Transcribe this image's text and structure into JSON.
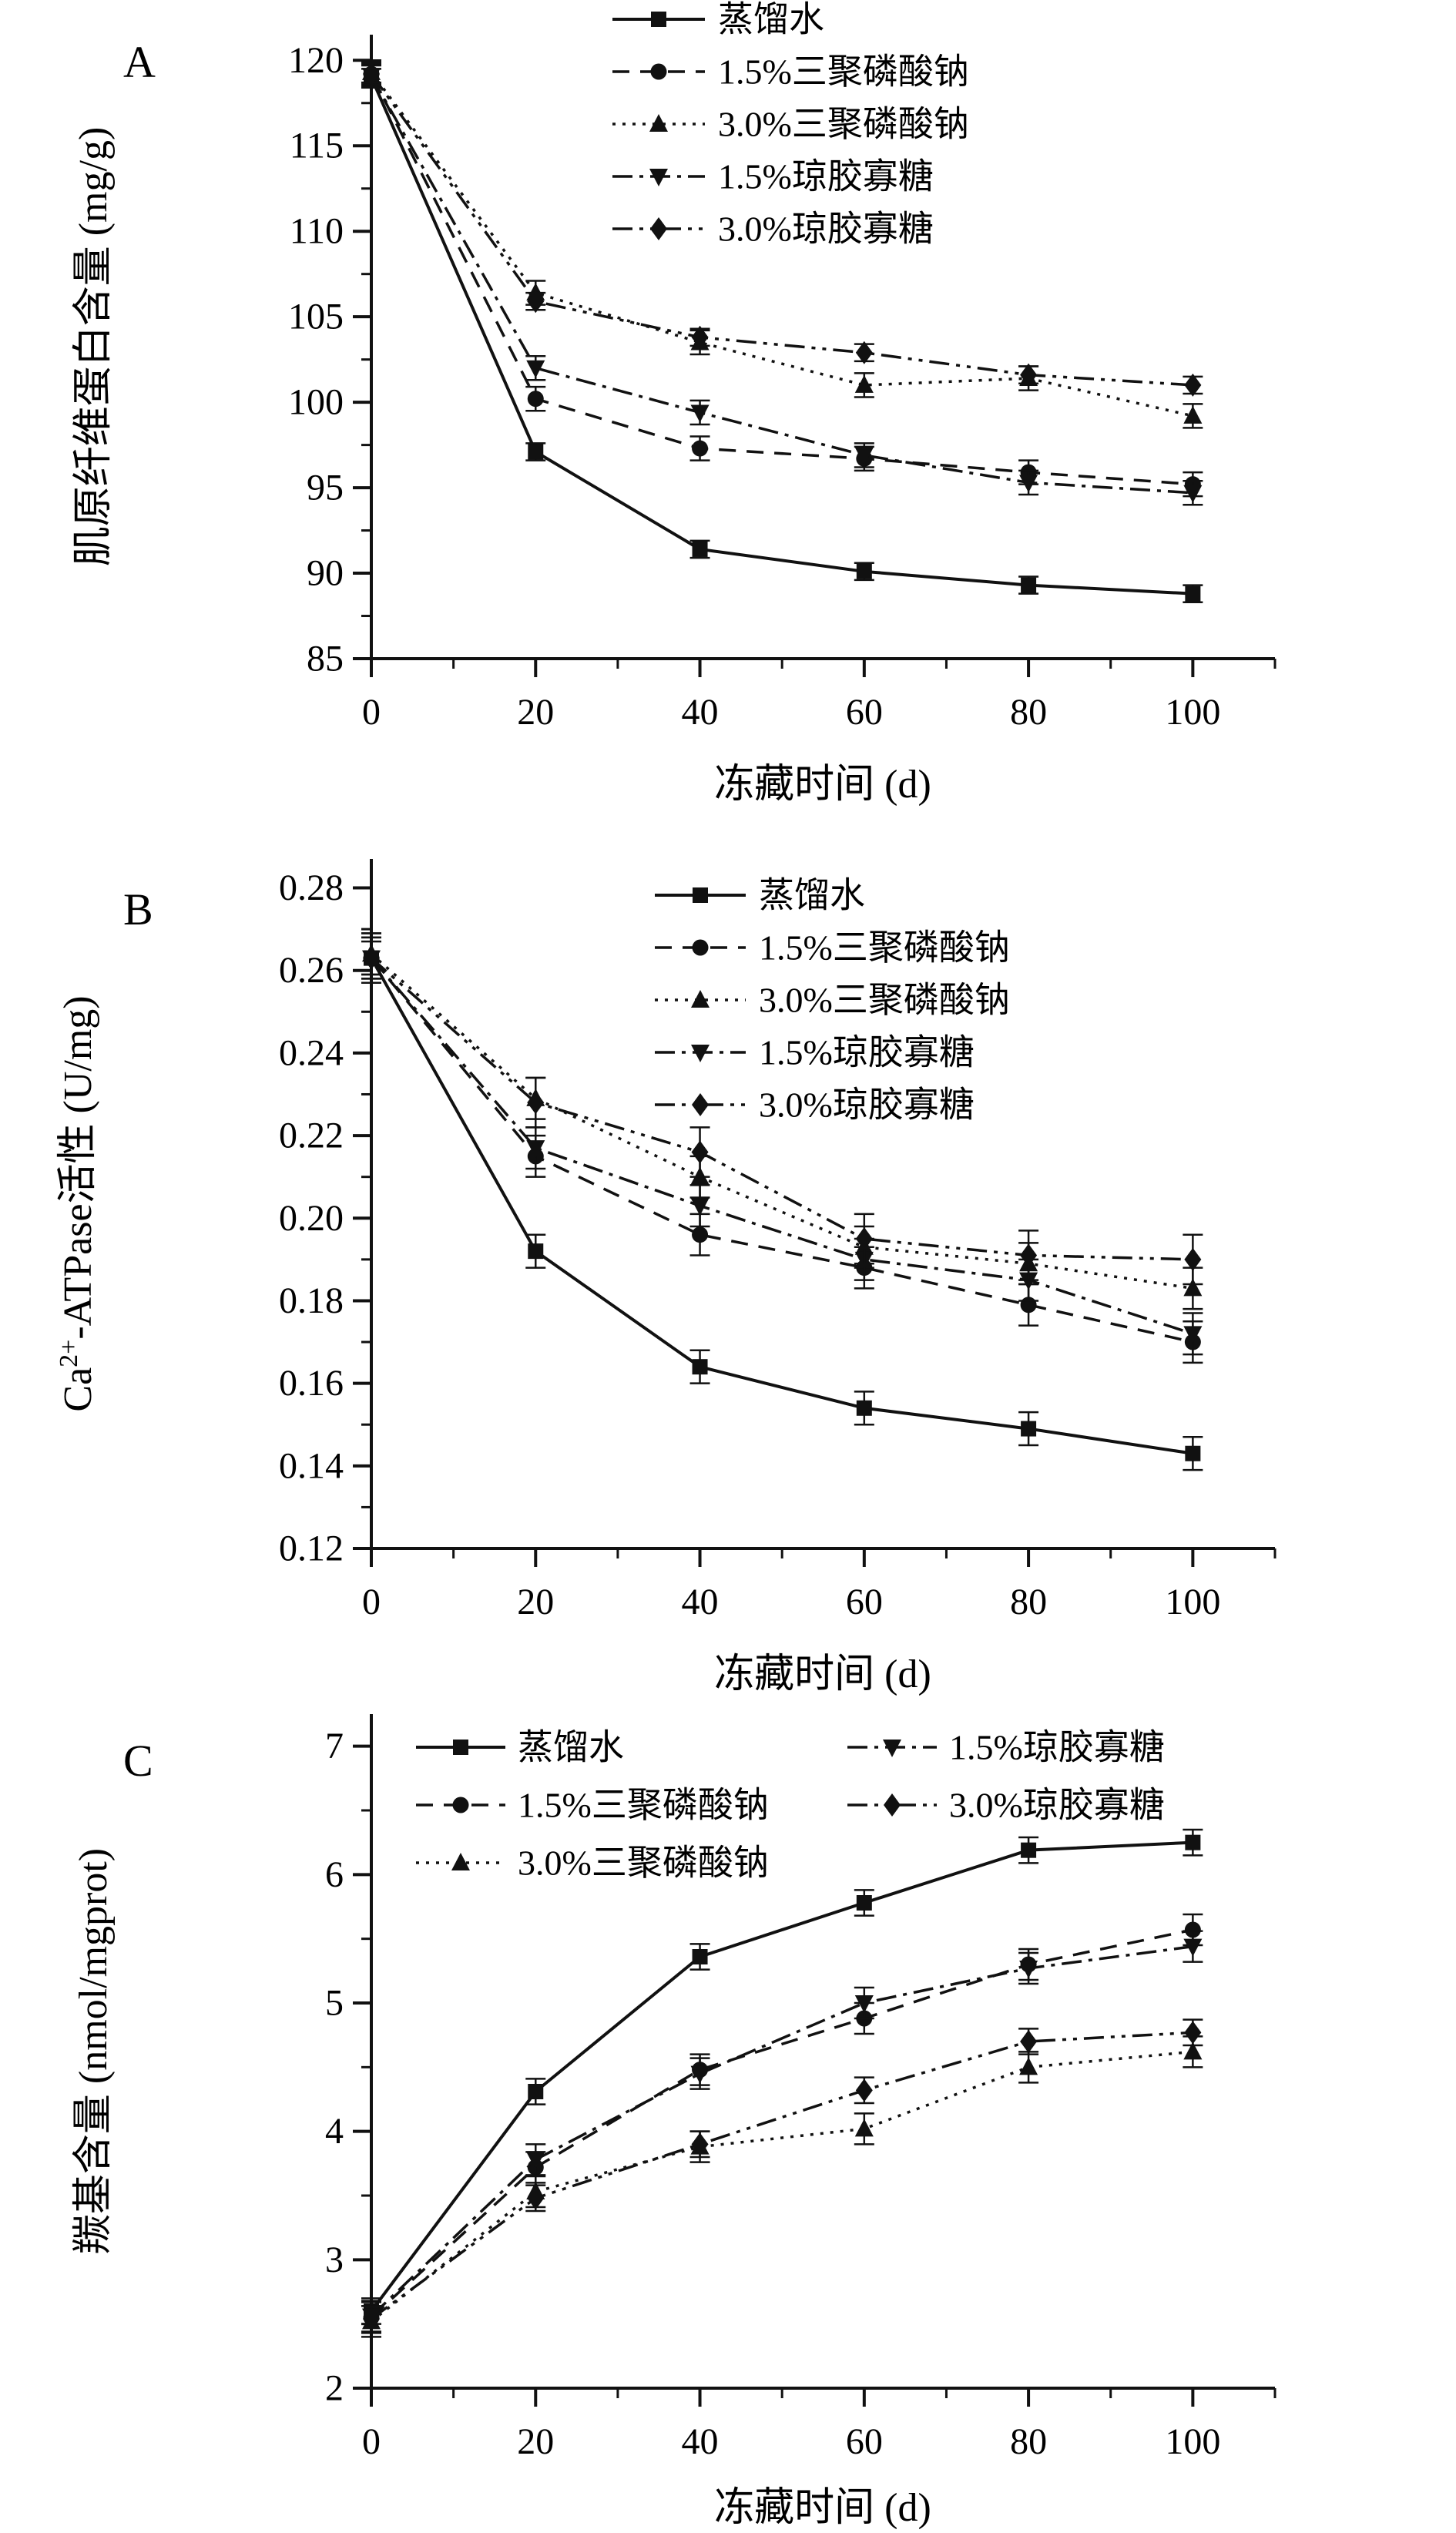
{
  "figure": {
    "description_labels": {
      "panel_a": "A",
      "panel_b": "B",
      "panel_c": "C"
    }
  },
  "chart_data": [
    {
      "type": "line",
      "panel_label": "A",
      "xlabel": "冻藏时间 (d)",
      "ylabel": "肌原纤维蛋白含量 (mg/g)",
      "x": [
        0,
        20,
        40,
        60,
        80,
        100
      ],
      "xlim": [
        0,
        110
      ],
      "ylim": [
        85,
        121.5
      ],
      "xticks": [
        {
          "v": 0,
          "label": "0"
        },
        {
          "v": 20,
          "label": "20"
        },
        {
          "v": 40,
          "label": "40"
        },
        {
          "v": 60,
          "label": "60"
        },
        {
          "v": 80,
          "label": "80"
        },
        {
          "v": 100,
          "label": "100"
        }
      ],
      "xminor": [
        10,
        30,
        50,
        70,
        90,
        110
      ],
      "yticks": [
        {
          "v": 85,
          "label": "85"
        },
        {
          "v": 90,
          "label": "90"
        },
        {
          "v": 95,
          "label": "95"
        },
        {
          "v": 100,
          "label": "100"
        },
        {
          "v": 105,
          "label": "105"
        },
        {
          "v": 110,
          "label": "110"
        },
        {
          "v": 115,
          "label": "115"
        },
        {
          "v": 120,
          "label": "120"
        }
      ],
      "yminor": [
        87.5,
        92.5,
        97.5,
        102.5,
        107.5,
        112.5,
        117.5
      ],
      "grid": false,
      "legend_position": "top-right-inside",
      "series": [
        {
          "key": "distilled-water",
          "name": "蒸馏水",
          "marker": "square",
          "dash": "",
          "values": [
            119.0,
            97.1,
            91.4,
            90.1,
            89.3,
            88.8
          ],
          "err": 0.5
        },
        {
          "key": "sodium-tripolyphosphate-1-5",
          "name": "1.5%三聚磷酸钠",
          "marker": "circle",
          "dash": "22 14",
          "values": [
            119.2,
            100.2,
            97.3,
            96.7,
            95.9,
            95.2
          ],
          "err": 0.7
        },
        {
          "key": "sodium-tripolyphosphate-3-0",
          "name": "3.0%三聚磷酸钠",
          "marker": "triangle-up",
          "dash": "4 9",
          "values": [
            119.3,
            106.4,
            103.5,
            101.0,
            101.4,
            99.2
          ],
          "err": 0.7
        },
        {
          "key": "agar-oligosaccharide-1-5",
          "name": "1.5%琼胶寡糖",
          "marker": "triangle-down",
          "dash": "26 9 5 9",
          "values": [
            119.1,
            102.0,
            99.4,
            96.9,
            95.3,
            94.7
          ],
          "err": 0.7
        },
        {
          "key": "agar-oligosaccharide-3-0",
          "name": "3.0%琼胶寡糖",
          "marker": "diamond",
          "dash": "26 9 5 9 5 9",
          "values": [
            119.2,
            105.9,
            103.8,
            102.9,
            101.6,
            101.0
          ],
          "err": 0.5
        }
      ]
    },
    {
      "type": "line",
      "panel_label": "B",
      "xlabel": "冻藏时间 (d)",
      "ylabel": "Ca2+-ATPase活性 (U/mg)",
      "ylabel_parts": {
        "pre": "Ca",
        "sup": "2+",
        "post": "-ATPase活性 (U/mg)"
      },
      "x": [
        0,
        20,
        40,
        60,
        80,
        100
      ],
      "xlim": [
        0,
        110
      ],
      "ylim": [
        0.12,
        0.287
      ],
      "xticks": [
        {
          "v": 0,
          "label": "0"
        },
        {
          "v": 20,
          "label": "20"
        },
        {
          "v": 40,
          "label": "40"
        },
        {
          "v": 60,
          "label": "60"
        },
        {
          "v": 80,
          "label": "80"
        },
        {
          "v": 100,
          "label": "100"
        }
      ],
      "xminor": [
        10,
        30,
        50,
        70,
        90,
        110
      ],
      "yticks": [
        {
          "v": 0.12,
          "label": "0.12"
        },
        {
          "v": 0.14,
          "label": "0.14"
        },
        {
          "v": 0.16,
          "label": "0.16"
        },
        {
          "v": 0.18,
          "label": "0.18"
        },
        {
          "v": 0.2,
          "label": "0.20"
        },
        {
          "v": 0.22,
          "label": "0.22"
        },
        {
          "v": 0.24,
          "label": "0.24"
        },
        {
          "v": 0.26,
          "label": "0.26"
        },
        {
          "v": 0.28,
          "label": "0.28"
        }
      ],
      "yminor": [
        0.13,
        0.15,
        0.17,
        0.19,
        0.21,
        0.23,
        0.25,
        0.27
      ],
      "grid": false,
      "legend_position": "top-right-inside",
      "series": [
        {
          "key": "distilled-water",
          "name": "蒸馏水",
          "marker": "square",
          "dash": "",
          "values": [
            0.263,
            0.192,
            0.164,
            0.154,
            0.149,
            0.143
          ],
          "err": 0.004
        },
        {
          "key": "sodium-tripolyphosphate-1-5",
          "name": "1.5%三聚磷酸钠",
          "marker": "circle",
          "dash": "22 14",
          "values": [
            0.263,
            0.215,
            0.196,
            0.188,
            0.179,
            0.17
          ],
          "err": 0.005
        },
        {
          "key": "sodium-tripolyphosphate-3-0",
          "name": "3.0%三聚磷酸钠",
          "marker": "triangle-up",
          "dash": "4 9",
          "values": [
            0.264,
            0.229,
            0.21,
            0.193,
            0.189,
            0.183
          ],
          "err": 0.005
        },
        {
          "key": "agar-oligosaccharide-1-5",
          "name": "1.5%琼胶寡糖",
          "marker": "triangle-down",
          "dash": "26 9 5 9",
          "values": [
            0.263,
            0.217,
            0.203,
            0.19,
            0.185,
            0.172
          ],
          "err": 0.005
        },
        {
          "key": "agar-oligosaccharide-3-0",
          "name": "3.0%琼胶寡糖",
          "marker": "diamond",
          "dash": "26 9 5 9 5 9",
          "values": [
            0.263,
            0.228,
            0.216,
            0.195,
            0.191,
            0.19
          ],
          "err": 0.006
        }
      ]
    },
    {
      "type": "line",
      "panel_label": "C",
      "xlabel": "冻藏时间 (d)",
      "ylabel": "羰基含量 (nmol/mgprot)",
      "x": [
        0,
        20,
        40,
        60,
        80,
        100
      ],
      "xlim": [
        0,
        110
      ],
      "ylim": [
        2,
        7.25
      ],
      "xticks": [
        {
          "v": 0,
          "label": "0"
        },
        {
          "v": 20,
          "label": "20"
        },
        {
          "v": 40,
          "label": "40"
        },
        {
          "v": 60,
          "label": "60"
        },
        {
          "v": 80,
          "label": "80"
        },
        {
          "v": 100,
          "label": "100"
        }
      ],
      "xminor": [
        10,
        30,
        50,
        70,
        90,
        110
      ],
      "yticks": [
        {
          "v": 2,
          "label": "2"
        },
        {
          "v": 3,
          "label": "3"
        },
        {
          "v": 4,
          "label": "4"
        },
        {
          "v": 5,
          "label": "5"
        },
        {
          "v": 6,
          "label": "6"
        },
        {
          "v": 7,
          "label": "7"
        }
      ],
      "yminor": [
        2.5,
        3.5,
        4.5,
        5.5,
        6.5
      ],
      "grid": false,
      "legend_position": "top-two-columns",
      "series": [
        {
          "key": "distilled-water",
          "name": "蒸馏水",
          "marker": "square",
          "dash": "",
          "values": [
            2.6,
            4.31,
            5.36,
            5.78,
            6.19,
            6.25
          ],
          "err": 0.1
        },
        {
          "key": "sodium-tripolyphosphate-1-5",
          "name": "1.5%三聚磷酸钠",
          "marker": "circle",
          "dash": "22 14",
          "values": [
            2.55,
            3.72,
            4.48,
            4.88,
            5.3,
            5.57
          ],
          "err": 0.12
        },
        {
          "key": "sodium-tripolyphosphate-3-0",
          "name": "3.0%三聚磷酸钠",
          "marker": "triangle-up",
          "dash": "4 9",
          "values": [
            2.52,
            3.53,
            3.88,
            4.02,
            4.5,
            4.62
          ],
          "err": 0.12
        },
        {
          "key": "agar-oligosaccharide-1-5",
          "name": "1.5%琼胶寡糖",
          "marker": "triangle-down",
          "dash": "26 9 5 9",
          "values": [
            2.56,
            3.78,
            4.45,
            5.0,
            5.27,
            5.44
          ],
          "err": 0.12
        },
        {
          "key": "agar-oligosaccharide-3-0",
          "name": "3.0%琼胶寡糖",
          "marker": "diamond",
          "dash": "26 9 5 9 5 9",
          "values": [
            2.54,
            3.48,
            3.9,
            4.32,
            4.7,
            4.77
          ],
          "err": 0.1
        }
      ]
    }
  ]
}
